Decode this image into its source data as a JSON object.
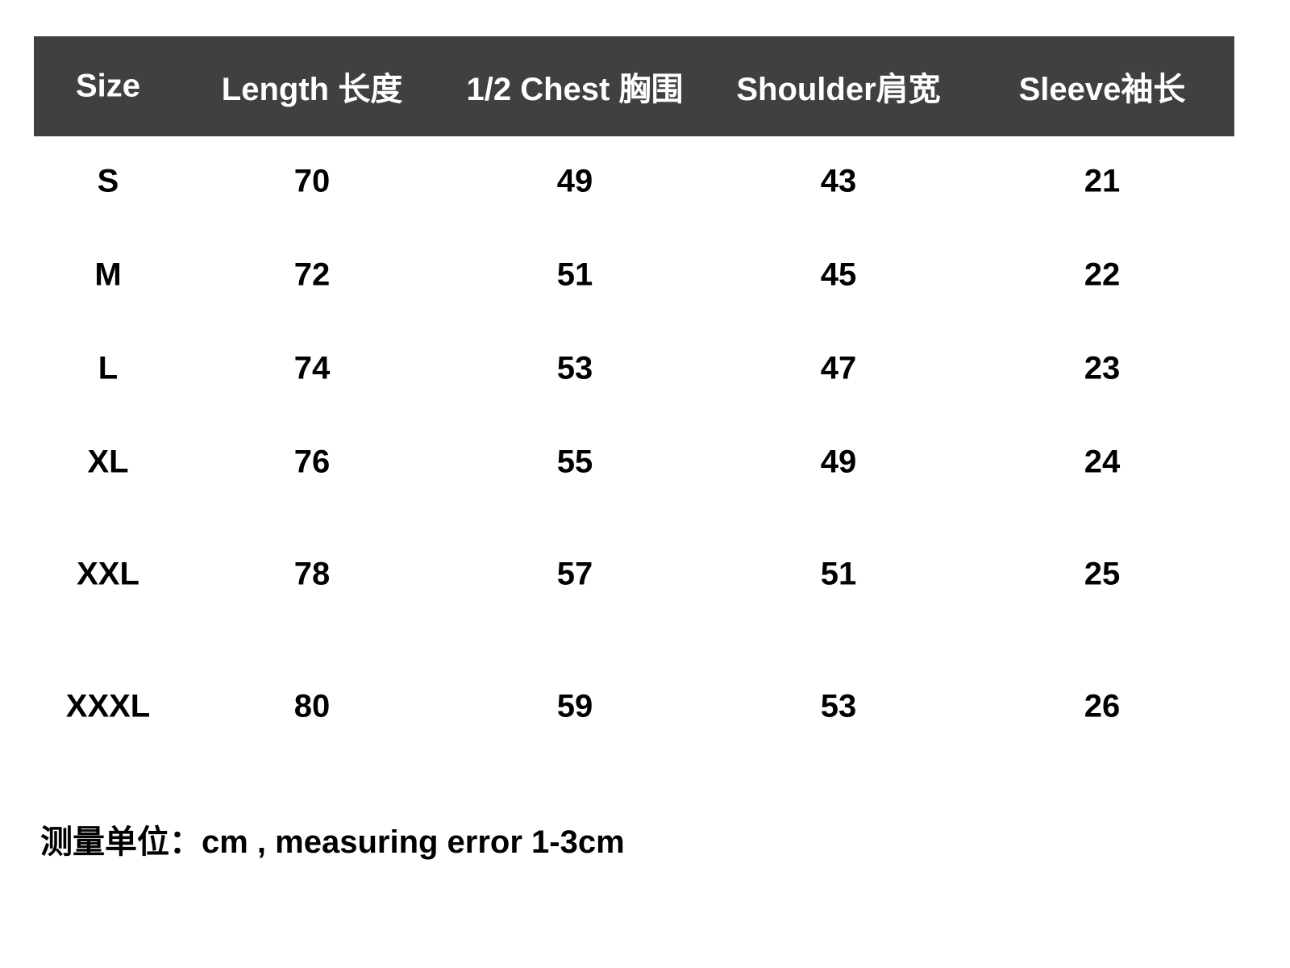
{
  "table": {
    "headers": [
      "Size",
      "Length 长度",
      "1/2 Chest 胸围",
      "Shoulder肩宽",
      "Sleeve袖长"
    ],
    "rows": [
      [
        "S",
        "70",
        "49",
        "43",
        "21"
      ],
      [
        "M",
        "72",
        "51",
        "45",
        "22"
      ],
      [
        "L",
        "74",
        "53",
        "47",
        "23"
      ],
      [
        "XL",
        "76",
        "55",
        "49",
        "24"
      ],
      [
        "XXL",
        "78",
        "57",
        "51",
        "25"
      ],
      [
        "XXXL",
        "80",
        "59",
        "53",
        "26"
      ]
    ]
  },
  "footer": {
    "note": "测量单位：cm , measuring error 1-3cm"
  },
  "colors": {
    "header_bg": "#404040",
    "header_text": "#ffffff",
    "body_text": "#000000"
  }
}
